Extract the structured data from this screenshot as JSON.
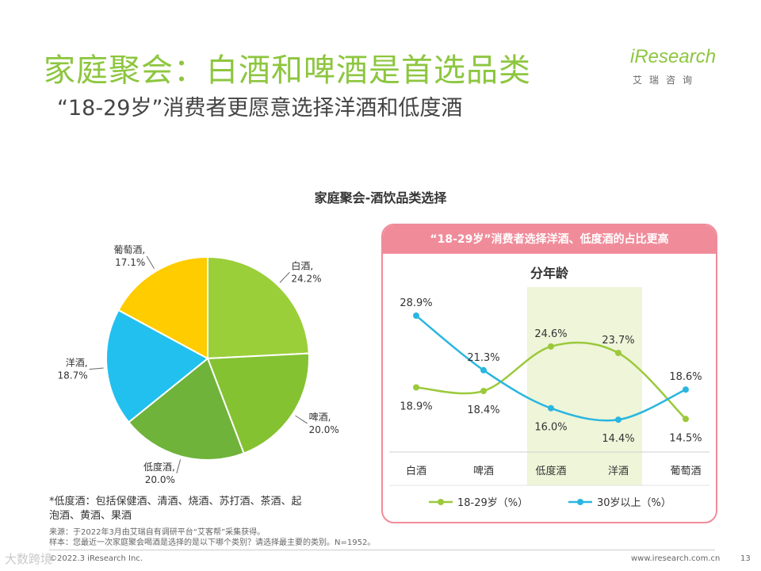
{
  "header": {
    "title": "家庭聚会：白酒和啤酒是首选品类",
    "subtitle": "“18-29岁”消费者更愿意选择洋酒和低度酒"
  },
  "logo": {
    "text": "iResearch",
    "cn": "艾瑞咨询"
  },
  "colors": {
    "green": "#8dc63f",
    "blue": "#29b6e0",
    "pink": "#f08c9a",
    "highlight": "#eef5d9"
  },
  "chart_data": [
    {
      "type": "pie",
      "title": "家庭聚会-酒饮品类选择",
      "slices": [
        {
          "name": "白酒,",
          "value": 24.2,
          "label": "24.2%",
          "color": "#9bcf3a"
        },
        {
          "name": "啤酒,",
          "value": 20.0,
          "label": "20.0%",
          "color": "#84c232"
        },
        {
          "name": "低度酒,",
          "value": 20.0,
          "label": "20.0%",
          "color": "#6fb33a"
        },
        {
          "name": "洋酒,",
          "value": 18.7,
          "label": "18.7%",
          "color": "#22c0ef"
        },
        {
          "name": "葡萄酒,",
          "value": 17.1,
          "label": "17.1%",
          "color": "#ffcc00"
        }
      ]
    },
    {
      "type": "line",
      "title": "分年龄",
      "banner": "“18-29岁”消费者选择洋酒、低度酒的占比更高",
      "categories": [
        "白酒",
        "啤酒",
        "低度酒",
        "洋酒",
        "葡萄酒"
      ],
      "highlight_categories": [
        "低度酒",
        "洋酒"
      ],
      "ylim": [
        10,
        32
      ],
      "series": [
        {
          "name": "18-29岁（%）",
          "color": "#9bc93a",
          "values": [
            18.9,
            18.4,
            24.6,
            23.7,
            14.5
          ],
          "labels": [
            "18.9%",
            "18.4%",
            "24.6%",
            "23.7%",
            "14.5%"
          ]
        },
        {
          "name": "30岁以上（%）",
          "color": "#29b6e0",
          "values": [
            28.9,
            21.3,
            16.0,
            14.4,
            18.6
          ],
          "labels": [
            "28.9%",
            "21.3%",
            "16.0%",
            "14.4%",
            "18.6%"
          ]
        }
      ]
    }
  ],
  "note": "*低度酒：包括保健酒、清酒、烧酒、苏打酒、茶酒、起泡酒、黄酒、果酒",
  "source": {
    "line1": "来源：于2022年3月由艾瑞自有调研平台“艾客帮”采集获得。",
    "line2": "样本：您最近一次家庭聚会喝酒是选择的是以下哪个类别？请选择最主要的类别。N=1952。"
  },
  "footer": {
    "copyright": "©2022.3 iResearch Inc.",
    "website": "www.iresearch.com.cn",
    "page": "13",
    "watermark": "大数跨境"
  }
}
